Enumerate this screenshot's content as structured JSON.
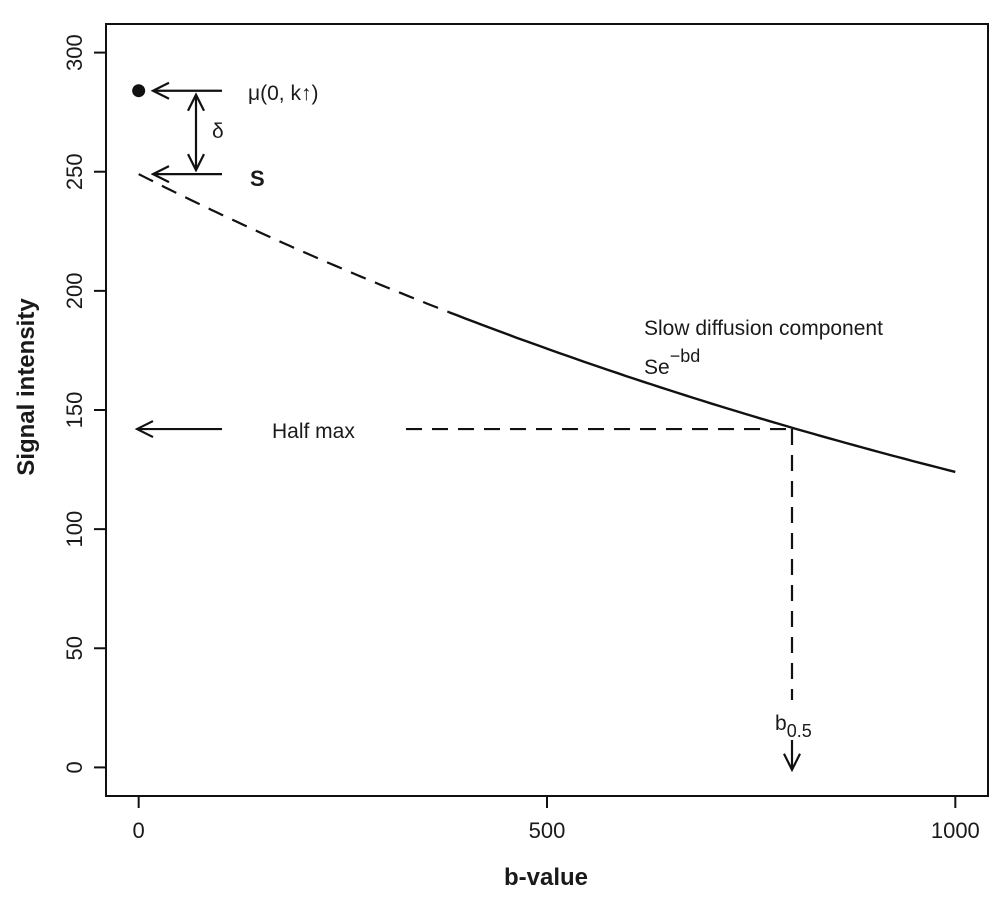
{
  "chart_data": {
    "type": "line",
    "xlabel": "b-value",
    "ylabel": "Signal intensity",
    "xlim": [
      -40,
      1040
    ],
    "ylim": [
      -12,
      312
    ],
    "x_ticks": [
      0,
      500,
      1000
    ],
    "y_ticks": [
      0,
      50,
      100,
      150,
      200,
      250,
      300
    ],
    "grid": false,
    "curve": {
      "name": "Slow diffusion component",
      "formula_base": "Se",
      "formula_exponent": "−bd",
      "S": 249,
      "d": 0.000697,
      "x_start": 0,
      "x_end": 1000,
      "dashed_until": 380
    },
    "point": {
      "x": 0,
      "y": 284,
      "label_main": "μ(0, k",
      "label_arrow": "↑",
      "label_close": ")"
    },
    "delta_label": "δ",
    "s_label": "S",
    "half_max": {
      "label": "Half max",
      "y": 142,
      "x_end": 800
    },
    "b_half": {
      "label_base": "b",
      "label_sub": "0.5",
      "x": 800
    }
  }
}
